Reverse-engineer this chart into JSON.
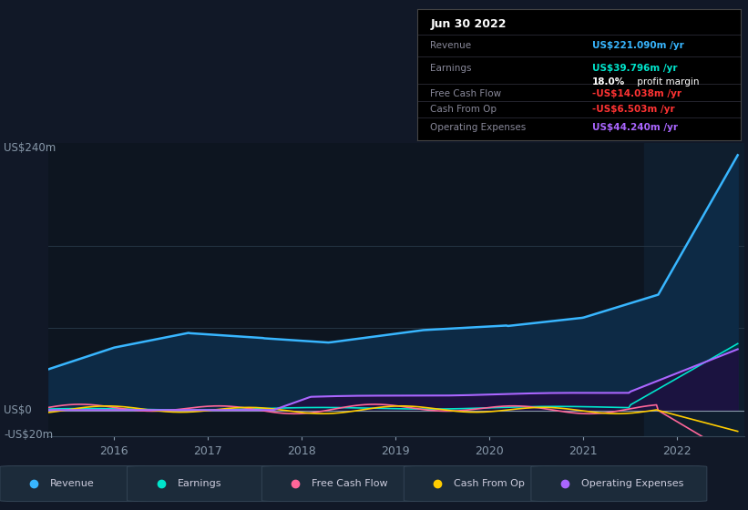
{
  "bg_color": "#111827",
  "chart_bg": "#0d1520",
  "highlight_bg": "#0f1e2e",
  "y_label_top": "US$240m",
  "y_label_zero": "US$0",
  "y_label_neg": "-US$20m",
  "ylim": [
    -25,
    260
  ],
  "x_ticks": [
    2016,
    2017,
    2018,
    2019,
    2020,
    2021,
    2022
  ],
  "legend": [
    {
      "label": "Revenue",
      "color": "#38b6ff"
    },
    {
      "label": "Earnings",
      "color": "#00e5cc"
    },
    {
      "label": "Free Cash Flow",
      "color": "#ff6699"
    },
    {
      "label": "Cash From Op",
      "color": "#ffcc00"
    },
    {
      "label": "Operating Expenses",
      "color": "#aa66ff"
    }
  ],
  "tooltip": {
    "date": "Jun 30 2022",
    "revenue_label": "Revenue",
    "revenue_val": "US$221.090m",
    "earnings_label": "Earnings",
    "earnings_val": "US$39.796m",
    "margin_val": "18.0%",
    "margin_text": " profit margin",
    "fcf_label": "Free Cash Flow",
    "fcf_val": "-US$14.038m",
    "cashop_label": "Cash From Op",
    "cashop_val": "-US$6.503m",
    "opex_label": "Operating Expenses",
    "opex_val": "US$44.240m"
  },
  "revenue_color": "#38b6ff",
  "revenue_fill": "#0d2a45",
  "earnings_color": "#00e5cc",
  "earnings_fill": "#002233",
  "fcf_color": "#ff6699",
  "cashop_color": "#ffcc00",
  "opex_color": "#aa66ff",
  "opex_fill": "#1a0f35"
}
